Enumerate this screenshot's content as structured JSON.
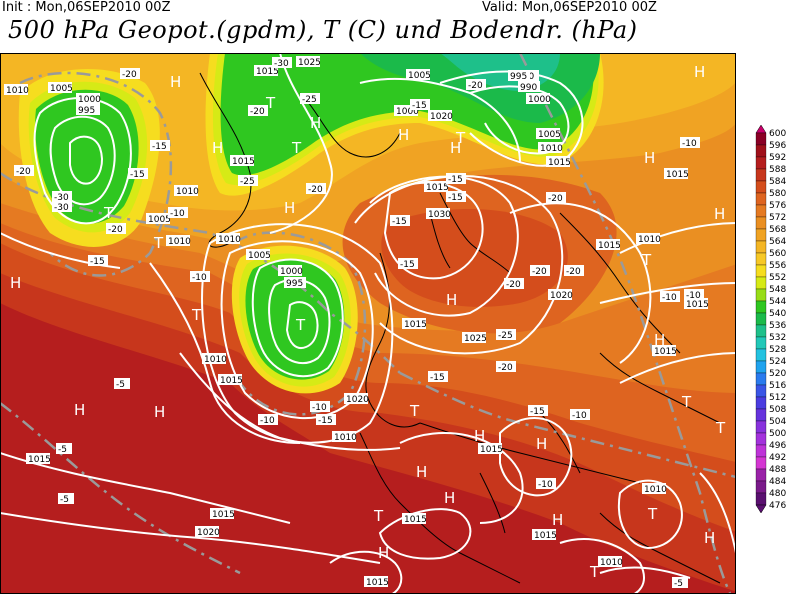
{
  "header": {
    "init": "Init : Mon,06SEP2010 00Z",
    "valid": "Valid: Mon,06SEP2010 00Z",
    "title": "500 hPa Geopot.(gpdm), T (C) und Bodendr. (hPa)"
  },
  "colorbar": {
    "levels": [
      "600",
      "596",
      "592",
      "588",
      "584",
      "580",
      "576",
      "572",
      "568",
      "564",
      "560",
      "556",
      "552",
      "548",
      "544",
      "540",
      "536",
      "532",
      "528",
      "524",
      "520",
      "516",
      "512",
      "508",
      "504",
      "500",
      "496",
      "492",
      "488",
      "484",
      "480",
      "476"
    ],
    "colors": [
      "#c8006a",
      "#8a0025",
      "#a0101a",
      "#b51e1e",
      "#c7361c",
      "#d44d1c",
      "#de6420",
      "#e57a22",
      "#ea8f22",
      "#f0a323",
      "#f4b624",
      "#f7c826",
      "#f6dd1f",
      "#d6ea16",
      "#98dd18",
      "#2fc720",
      "#1bba4a",
      "#1ec08a",
      "#22c8b8",
      "#23c2e0",
      "#1fa3ee",
      "#2a7bee",
      "#3a55e6",
      "#4a3ce0",
      "#6633dd",
      "#8832dd",
      "#a332dc",
      "#be33d8",
      "#d436d2",
      "#9a22a8",
      "#7a1a8a",
      "#5a1070"
    ]
  },
  "map_labels": {
    "isobars": [
      "1010",
      "1005",
      "1000",
      "995",
      "990",
      "1015",
      "1020",
      "1025",
      "1030",
      "1005",
      "1010",
      "1015",
      "1010",
      "1005",
      "1000",
      "995",
      "1015",
      "1010",
      "1015",
      "1020",
      "1025",
      "1015",
      "1020",
      "1010",
      "1015",
      "1005",
      "1000",
      "990",
      "995",
      "1000",
      "1005",
      "1010",
      "1015",
      "1020",
      "1010",
      "1015",
      "1010",
      "1015",
      "1015",
      "1020",
      "1015",
      "1020",
      "1010",
      "1015",
      "1015",
      "1010",
      "1020",
      "1015",
      "1025",
      "1020",
      "1015",
      "1010",
      "1015",
      "1005"
    ],
    "temps": [
      "-20",
      "-15",
      "-20",
      "-30",
      "-30",
      "-20",
      "-15",
      "-10",
      "-15",
      "-10",
      "-20",
      "-30",
      "-25",
      "-20",
      "-25",
      "-20",
      "-15",
      "-20",
      "-15",
      "-10",
      "-10",
      "-15",
      "-20",
      "-15",
      "-15",
      "-20",
      "-20",
      "-25",
      "-20",
      "-15",
      "-10",
      "-15",
      "-10",
      "-5",
      "-5",
      "-5",
      "-10",
      "-10",
      "-15",
      "-10",
      "-10",
      "-10",
      "-5"
    ],
    "pressure_centers": [
      "H",
      "H",
      "H",
      "H",
      "T",
      "T",
      "T",
      "T",
      "T",
      "T",
      "T",
      "T",
      "H",
      "H",
      "H",
      "H",
      "H",
      "H",
      "H",
      "H",
      "T",
      "H",
      "H",
      "T",
      "T",
      "H",
      "H",
      "H",
      "T",
      "H",
      "T",
      "H",
      "T",
      "H",
      "H"
    ]
  },
  "colors": {
    "ocean_deep": "#b51e1e",
    "isobar": "#ffffff",
    "geopot_line": "#888888",
    "coast": "#000000"
  }
}
